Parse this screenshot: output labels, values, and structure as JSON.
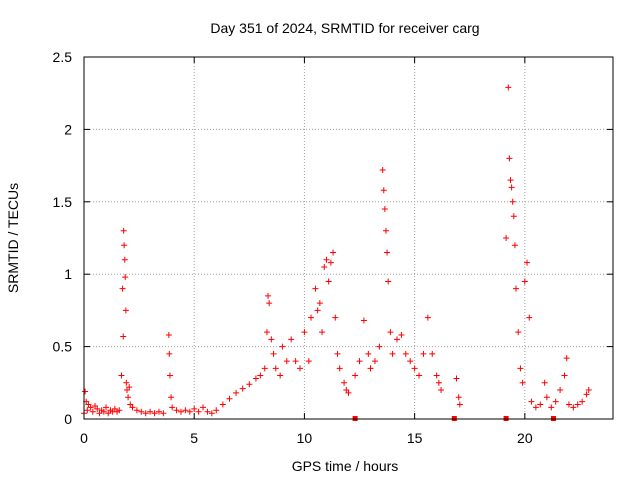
{
  "chart_data": {
    "type": "scatter",
    "title": "Day 351 of 2024, SRMTID for receiver carg",
    "xlabel": "GPS time / hours",
    "ylabel": "SRMTID / TECUs",
    "xlim": [
      0,
      24
    ],
    "ylim": [
      0,
      2.5
    ],
    "x_ticks": [
      0,
      5,
      10,
      15,
      20
    ],
    "x_tick_labels": [
      "0",
      "5",
      "10",
      "15",
      "20"
    ],
    "y_ticks": [
      0,
      0.5,
      1,
      1.5,
      2,
      2.5
    ],
    "y_tick_labels": [
      "0",
      "0.5",
      "1",
      "1.5",
      "2",
      "2.5"
    ],
    "grid": true,
    "marker": "+",
    "color": "#ff0000",
    "series": [
      {
        "name": "SRMTID",
        "points": [
          [
            0.0,
            0.04
          ],
          [
            0.05,
            0.19
          ],
          [
            0.1,
            0.12
          ],
          [
            0.15,
            0.06
          ],
          [
            0.2,
            0.1
          ],
          [
            0.3,
            0.08
          ],
          [
            0.4,
            0.05
          ],
          [
            0.5,
            0.09
          ],
          [
            0.6,
            0.07
          ],
          [
            0.7,
            0.04
          ],
          [
            0.8,
            0.06
          ],
          [
            0.9,
            0.05
          ],
          [
            1.0,
            0.08
          ],
          [
            1.1,
            0.04
          ],
          [
            1.2,
            0.06
          ],
          [
            1.3,
            0.05
          ],
          [
            1.4,
            0.07
          ],
          [
            1.5,
            0.05
          ],
          [
            1.6,
            0.06
          ],
          [
            1.7,
            0.3
          ],
          [
            1.75,
            0.9
          ],
          [
            1.78,
            0.57
          ],
          [
            1.8,
            1.3
          ],
          [
            1.82,
            1.2
          ],
          [
            1.85,
            1.1
          ],
          [
            1.87,
            0.98
          ],
          [
            1.9,
            0.75
          ],
          [
            1.92,
            0.25
          ],
          [
            1.95,
            0.2
          ],
          [
            2.0,
            0.15
          ],
          [
            2.05,
            0.22
          ],
          [
            2.1,
            0.1
          ],
          [
            2.2,
            0.08
          ],
          [
            2.4,
            0.06
          ],
          [
            2.6,
            0.05
          ],
          [
            2.8,
            0.04
          ],
          [
            3.0,
            0.05
          ],
          [
            3.2,
            0.04
          ],
          [
            3.4,
            0.05
          ],
          [
            3.6,
            0.04
          ],
          [
            3.85,
            0.58
          ],
          [
            3.87,
            0.45
          ],
          [
            3.9,
            0.3
          ],
          [
            3.95,
            0.15
          ],
          [
            4.0,
            0.08
          ],
          [
            4.2,
            0.06
          ],
          [
            4.4,
            0.05
          ],
          [
            4.6,
            0.06
          ],
          [
            4.8,
            0.05
          ],
          [
            5.0,
            0.07
          ],
          [
            5.2,
            0.05
          ],
          [
            5.4,
            0.08
          ],
          [
            5.6,
            0.05
          ],
          [
            5.8,
            0.04
          ],
          [
            6.0,
            0.06
          ],
          [
            6.3,
            0.1
          ],
          [
            6.6,
            0.14
          ],
          [
            6.9,
            0.18
          ],
          [
            7.2,
            0.21
          ],
          [
            7.5,
            0.24
          ],
          [
            7.8,
            0.28
          ],
          [
            8.0,
            0.3
          ],
          [
            8.2,
            0.35
          ],
          [
            8.3,
            0.6
          ],
          [
            8.35,
            0.85
          ],
          [
            8.4,
            0.8
          ],
          [
            8.5,
            0.55
          ],
          [
            8.6,
            0.45
          ],
          [
            8.7,
            0.35
          ],
          [
            8.9,
            0.3
          ],
          [
            9.0,
            0.5
          ],
          [
            9.2,
            0.4
          ],
          [
            9.4,
            0.55
          ],
          [
            9.6,
            0.4
          ],
          [
            9.8,
            0.35
          ],
          [
            10.0,
            0.6
          ],
          [
            10.2,
            0.4
          ],
          [
            10.3,
            0.7
          ],
          [
            10.5,
            0.9
          ],
          [
            10.6,
            0.75
          ],
          [
            10.7,
            0.8
          ],
          [
            10.8,
            0.6
          ],
          [
            10.9,
            1.05
          ],
          [
            11.0,
            1.1
          ],
          [
            11.1,
            0.95
          ],
          [
            11.2,
            1.08
          ],
          [
            11.3,
            1.15
          ],
          [
            11.4,
            0.7
          ],
          [
            11.5,
            0.45
          ],
          [
            11.6,
            0.35
          ],
          [
            11.8,
            0.25
          ],
          [
            11.9,
            0.2
          ],
          [
            12.0,
            0.18
          ],
          [
            12.3,
            0.3
          ],
          [
            12.5,
            0.4
          ],
          [
            12.7,
            0.68
          ],
          [
            12.9,
            0.45
          ],
          [
            13.0,
            0.35
          ],
          [
            13.2,
            0.4
          ],
          [
            13.4,
            0.5
          ],
          [
            13.55,
            1.72
          ],
          [
            13.6,
            1.58
          ],
          [
            13.65,
            1.45
          ],
          [
            13.7,
            1.3
          ],
          [
            13.75,
            1.15
          ],
          [
            13.8,
            0.95
          ],
          [
            13.9,
            0.6
          ],
          [
            14.0,
            0.45
          ],
          [
            14.2,
            0.55
          ],
          [
            14.4,
            0.58
          ],
          [
            14.6,
            0.45
          ],
          [
            14.8,
            0.4
          ],
          [
            15.0,
            0.35
          ],
          [
            15.2,
            0.3
          ],
          [
            15.4,
            0.45
          ],
          [
            15.6,
            0.7
          ],
          [
            15.8,
            0.45
          ],
          [
            16.0,
            0.3
          ],
          [
            16.1,
            0.25
          ],
          [
            16.2,
            0.2
          ],
          [
            16.9,
            0.28
          ],
          [
            17.0,
            0.15
          ],
          [
            17.05,
            0.1
          ],
          [
            19.15,
            1.25
          ],
          [
            19.25,
            2.29
          ],
          [
            19.3,
            1.8
          ],
          [
            19.35,
            1.65
          ],
          [
            19.4,
            1.6
          ],
          [
            19.45,
            1.5
          ],
          [
            19.5,
            1.4
          ],
          [
            19.55,
            1.2
          ],
          [
            19.6,
            0.9
          ],
          [
            19.7,
            0.6
          ],
          [
            19.8,
            0.35
          ],
          [
            19.9,
            0.25
          ],
          [
            20.0,
            0.95
          ],
          [
            20.1,
            1.08
          ],
          [
            20.2,
            0.7
          ],
          [
            20.3,
            0.12
          ],
          [
            20.5,
            0.08
          ],
          [
            20.7,
            0.1
          ],
          [
            20.9,
            0.25
          ],
          [
            21.0,
            0.15
          ],
          [
            21.2,
            0.08
          ],
          [
            21.4,
            0.12
          ],
          [
            21.6,
            0.2
          ],
          [
            21.8,
            0.3
          ],
          [
            21.9,
            0.42
          ],
          [
            22.0,
            0.1
          ],
          [
            22.2,
            0.08
          ],
          [
            22.4,
            0.1
          ],
          [
            22.6,
            0.12
          ],
          [
            22.8,
            0.17
          ],
          [
            22.9,
            0.2
          ]
        ],
        "zero_markers": [
          12.3,
          16.8,
          19.15,
          21.3
        ]
      }
    ]
  }
}
